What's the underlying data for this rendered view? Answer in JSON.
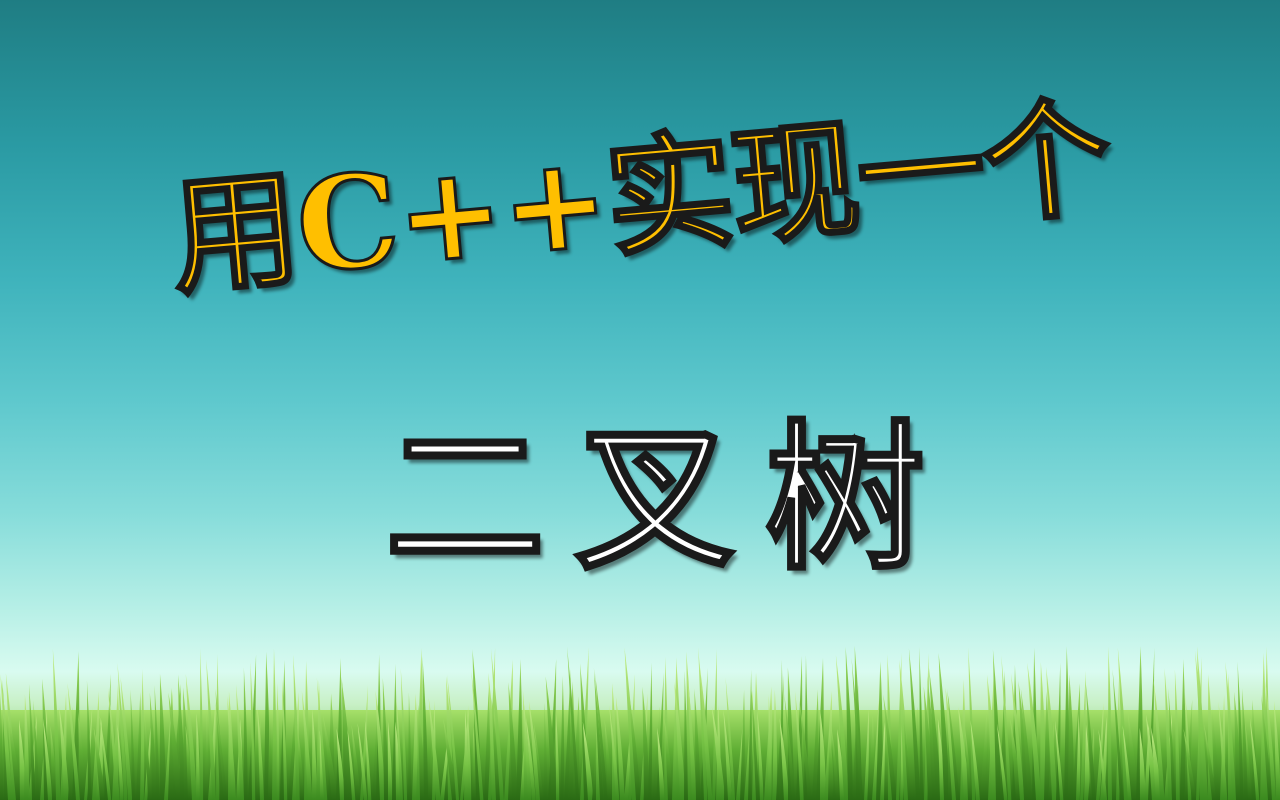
{
  "slide": {
    "title_line1": "用C++实现一个",
    "title_line2": "二叉树"
  },
  "colors": {
    "title_line1": "#ffbf00",
    "title_line2": "#ffffff",
    "sky_top": "#1f7d83",
    "sky_bottom": "#d9fbf0",
    "grass_dark": "#2f7a1a",
    "grass_light": "#8fd35a"
  }
}
